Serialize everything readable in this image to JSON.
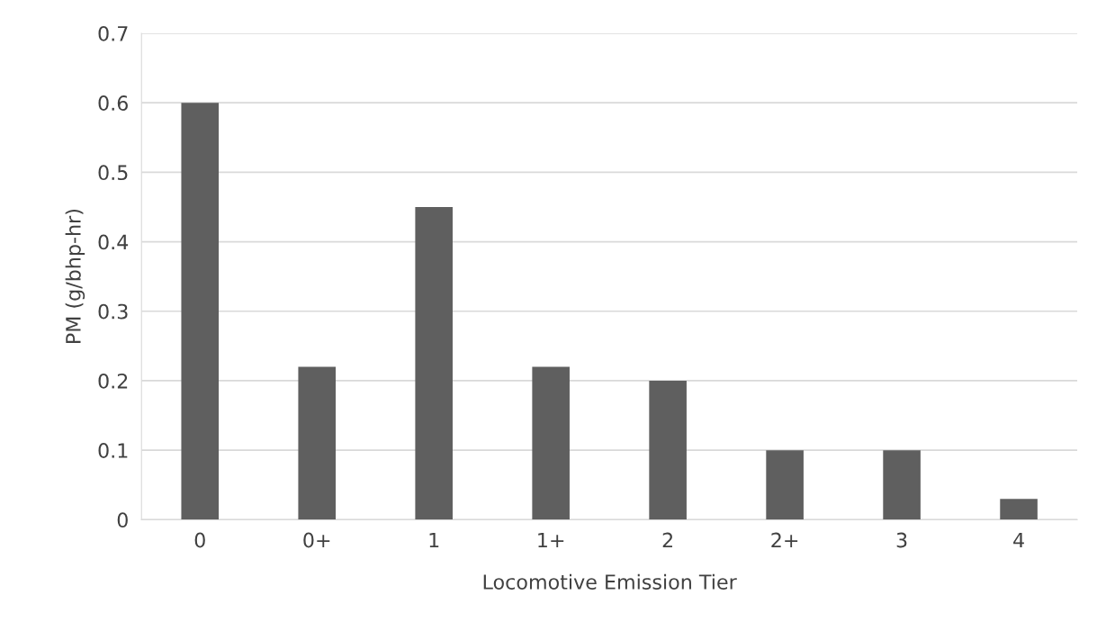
{
  "chart_data": {
    "type": "bar",
    "xlabel": "Locomotive Emission Tier",
    "ylabel": "PM (g/bhp-hr)",
    "categories": [
      "0",
      "0+",
      "1",
      "1+",
      "2",
      "2+",
      "3",
      "4"
    ],
    "values": [
      0.6,
      0.22,
      0.45,
      0.22,
      0.2,
      0.1,
      0.1,
      0.03
    ],
    "color": "#5f5f5f",
    "ylim": [
      0,
      0.7
    ],
    "yticks": [
      {
        "value": 0,
        "label": "0"
      },
      0.1,
      0.2,
      0.3,
      0.4,
      0.5,
      0.6,
      0.7
    ],
    "grid": "y",
    "legend": false
  }
}
